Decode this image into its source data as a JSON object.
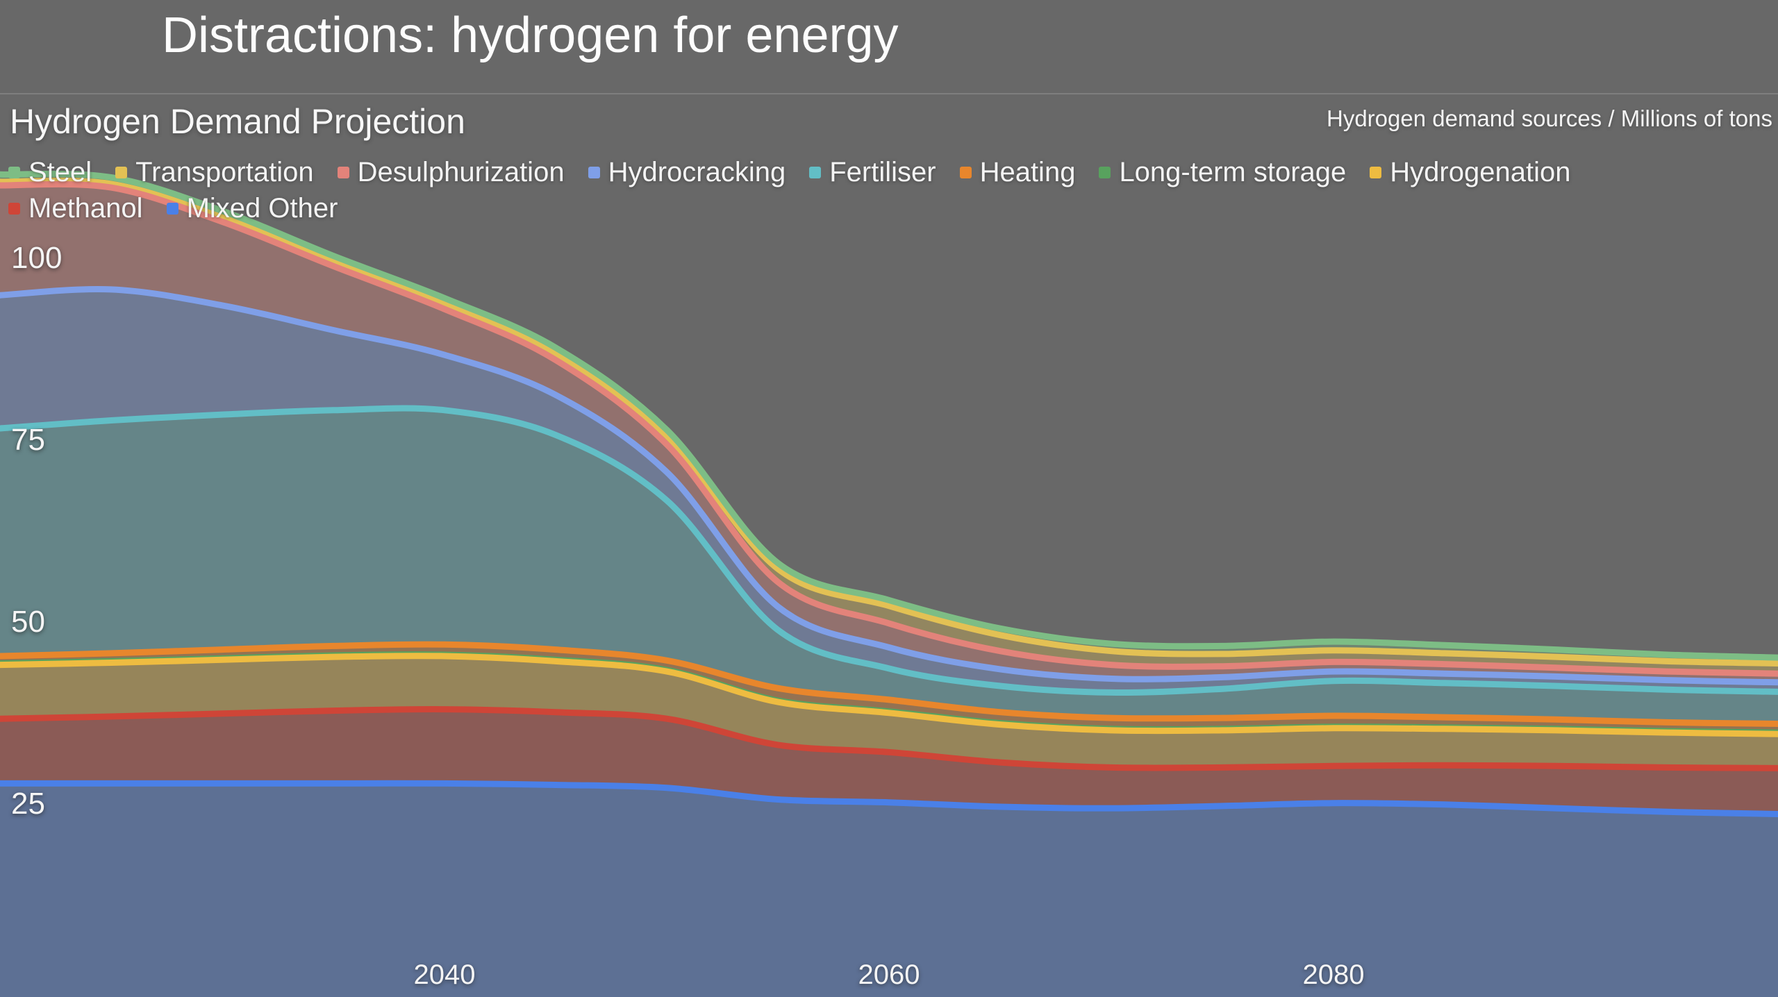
{
  "slide": {
    "title": "Distractions: hydrogen for energy"
  },
  "chart": {
    "title": "Hydrogen Demand Projection",
    "units_label": "Hydrogen demand sources / Millions of tons",
    "background_color": "#686868",
    "legend_rows": [
      [
        "Steel",
        "Transportation",
        "Desulphurization",
        "Hydrocracking",
        "Fertiliser",
        "Heating",
        "Long-term storage",
        "Hydrogenation"
      ],
      [
        "Methanol",
        "Mixed Other"
      ]
    ]
  },
  "chart_data": {
    "type": "area",
    "stacked": true,
    "title": "Hydrogen Demand Projection",
    "xlabel": "",
    "ylabel": "Hydrogen demand sources / Millions of tons",
    "x_domain": [
      2020,
      2100
    ],
    "y_baseline": 0,
    "x": [
      2020,
      2025,
      2030,
      2035,
      2040,
      2045,
      2050,
      2055,
      2060,
      2065,
      2070,
      2075,
      2080,
      2085,
      2090,
      2095,
      2100
    ],
    "x_ticks": [
      2040,
      2060,
      2080
    ],
    "y_ticks": [
      100,
      75,
      50,
      25
    ],
    "fill_opacity": 0.35,
    "stack_order_bottom_to_top": [
      "Mixed Other",
      "Methanol",
      "Hydrogenation",
      "Long-term storage",
      "Heating",
      "Fertiliser",
      "Hydrocracking",
      "Desulphurization",
      "Transportation",
      "Steel"
    ],
    "stroke_draw_order": [
      "Long-term storage",
      "Transportation",
      "Mixed Other",
      "Methanol",
      "Hydrogenation",
      "Heating",
      "Fertiliser",
      "Hydrocracking",
      "Desulphurization",
      "Steel"
    ],
    "series": [
      {
        "name": "Steel",
        "color": "#7dbd85",
        "values": [
          1.0,
          0.9,
          0.9,
          0.8,
          0.8,
          0.8,
          0.8,
          0.8,
          0.8,
          0.9,
          1.0,
          1.1,
          1.2,
          1.1,
          1.0,
          0.9,
          0.8
        ]
      },
      {
        "name": "Transportation",
        "color": "#e3c154",
        "values": [
          0.5,
          0.5,
          0.6,
          0.6,
          0.7,
          0.9,
          1.2,
          1.8,
          2.4,
          2.2,
          1.9,
          1.7,
          1.6,
          1.5,
          1.5,
          1.4,
          1.4
        ]
      },
      {
        "name": "Desulphurization",
        "color": "#e3837a",
        "values": [
          15.1,
          14.0,
          11.5,
          8.8,
          6.3,
          4.8,
          3.8,
          3.4,
          3.3,
          2.5,
          1.9,
          1.5,
          1.3,
          1.3,
          1.2,
          1.2,
          1.2
        ]
      },
      {
        "name": "Hydrocracking",
        "color": "#7f9fe8",
        "values": [
          18.3,
          18.0,
          15.0,
          11.0,
          7.6,
          5.5,
          3.9,
          3.2,
          2.9,
          2.3,
          1.9,
          1.6,
          1.3,
          1.3,
          1.3,
          1.3,
          1.3
        ]
      },
      {
        "name": "Fertiliser",
        "color": "#62bec6",
        "values": [
          31.3,
          32.0,
          32.3,
          32.4,
          32.2,
          29.5,
          22.0,
          8.0,
          4.3,
          3.6,
          3.5,
          4.0,
          4.8,
          4.7,
          4.6,
          4.5,
          4.4
        ]
      },
      {
        "name": "Heating",
        "color": "#e8862c",
        "values": [
          1.0,
          1.1,
          1.2,
          1.3,
          1.4,
          1.4,
          1.3,
          1.7,
          1.6,
          1.5,
          1.5,
          1.5,
          1.5,
          1.4,
          1.3,
          1.2,
          1.2
        ]
      },
      {
        "name": "Long-term storage",
        "color": "#58a25e",
        "values": [
          0.2,
          0.2,
          0.2,
          0.2,
          0.2,
          0.2,
          0.2,
          0.2,
          0.2,
          0.2,
          0.2,
          0.2,
          0.2,
          0.2,
          0.2,
          0.2,
          0.2
        ]
      },
      {
        "name": "Hydrogenation",
        "color": "#eebc41",
        "values": [
          7.4,
          7.4,
          7.4,
          7.4,
          7.3,
          7.0,
          6.5,
          5.9,
          5.4,
          5.2,
          5.1,
          5.1,
          5.2,
          5.0,
          4.9,
          4.8,
          4.7
        ]
      },
      {
        "name": "Methanol",
        "color": "#cf4537",
        "values": [
          8.9,
          9.2,
          9.6,
          10.0,
          10.2,
          10.0,
          9.5,
          7.5,
          6.9,
          6.1,
          5.6,
          5.3,
          5.1,
          5.4,
          5.8,
          6.1,
          6.3
        ]
      },
      {
        "name": "Mixed Other",
        "color": "#4a80e8",
        "values": [
          32.4,
          32.4,
          32.4,
          32.4,
          32.4,
          32.2,
          31.8,
          30.2,
          29.8,
          29.2,
          29.0,
          29.3,
          29.7,
          29.5,
          29.0,
          28.5,
          28.2
        ]
      }
    ]
  }
}
